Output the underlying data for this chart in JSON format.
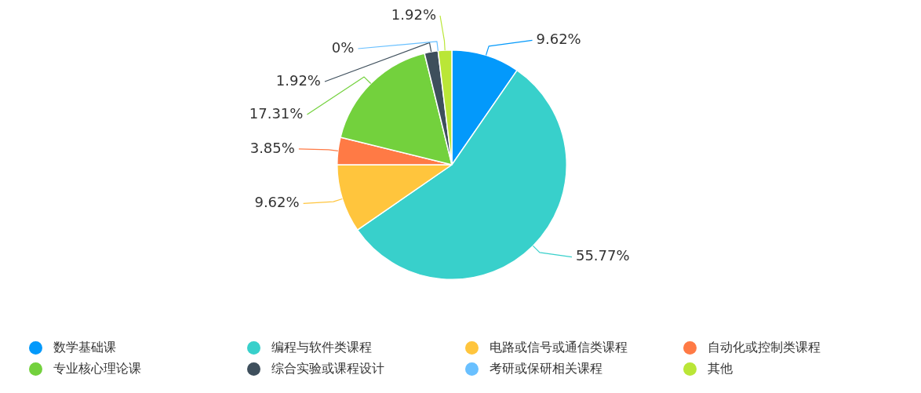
{
  "chart_data": {
    "type": "pie",
    "categories": [
      "数学基础课",
      "编程与软件类课程",
      "电路或信号或通信类课程",
      "自动化或控制类课程",
      "专业核心理论课",
      "综合实验或课程设计",
      "考研或保研相关课程",
      "其他"
    ],
    "values": [
      9.62,
      55.77,
      9.62,
      3.85,
      17.31,
      1.92,
      0,
      1.92
    ],
    "colors": [
      "#0399fb",
      "#38d0cb",
      "#ffc53d",
      "#ff7a45",
      "#73d13d",
      "#3e4f5c",
      "#69c0ff",
      "#bae637"
    ],
    "value_labels": [
      "9.62%",
      "55.77%",
      "9.62%",
      "3.85%",
      "17.31%",
      "1.92%",
      "0%",
      "1.92%"
    ],
    "legend": "bottom"
  }
}
